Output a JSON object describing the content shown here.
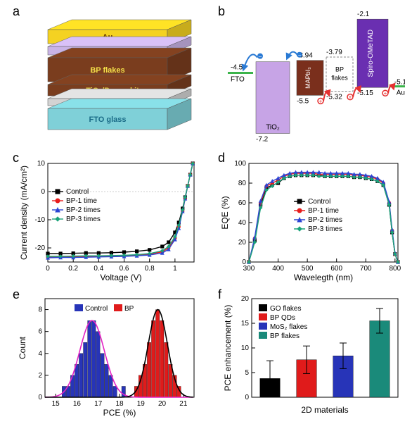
{
  "labels": {
    "a": "a",
    "b": "b",
    "c": "c",
    "d": "d",
    "e": "e",
    "f": "f"
  },
  "panel_a": {
    "layers": [
      {
        "name": "Au",
        "color": "#f4d222",
        "text_color": "#6a3c00"
      },
      {
        "name": "Spiro-OMeTAD",
        "color": "#c9b3e6",
        "text_color": "#ffffff"
      },
      {
        "name": "BP flakes",
        "color": "#7a3d1e",
        "text_color": "#f4e14a"
      },
      {
        "name": "mp-TiO₂/Perovskite",
        "color": "#7a3d1e",
        "text_color": "#f4e14a"
      },
      {
        "name": "Compact TiO₂",
        "color": "#d3d3d3",
        "text_color": "#888888"
      },
      {
        "name": "FTO glass",
        "color": "#7fd0d8",
        "text_color": "#1a6b87"
      }
    ]
  },
  "panel_b": {
    "bands": {
      "FTO": {
        "level": -4.5,
        "color": "#3cb44b"
      },
      "TiO2": {
        "cb": -4.0,
        "vb": -7.2,
        "color": "#c7a4e6",
        "label": "TiO₂"
      },
      "MAPbI3": {
        "cb": -3.94,
        "vb": -5.5,
        "color": "#7a2f1c",
        "label": "MAPbI₃",
        "label_color": "#ffffff"
      },
      "BP": {
        "cb": -3.79,
        "vb": -5.32,
        "color": "#ffffff",
        "border": "#888",
        "label": "BP flakes"
      },
      "Spiro": {
        "cb": -2.1,
        "vb": -5.15,
        "color": "#6a2fb1",
        "label": "Spiro-OMeTAD",
        "label_color": "#ffffff"
      },
      "Au": {
        "level": -5.1,
        "color": "#3cb44b"
      }
    },
    "electron_color": "#2a7ad4",
    "hole_color": "#e53030"
  },
  "panel_c": {
    "type": "line",
    "title": null,
    "xlabel": "Voltage (V)",
    "ylabel": "Current density (mA/cm²)",
    "xlim": [
      0.0,
      1.15
    ],
    "ylim": [
      -25,
      10
    ],
    "xticks": [
      0.0,
      0.2,
      0.4,
      0.6,
      0.8,
      1.0
    ],
    "yticks": [
      -20,
      -10,
      0,
      10
    ],
    "series": [
      {
        "name": "Control",
        "color": "#000000",
        "marker": "square",
        "x": [
          0.0,
          0.1,
          0.2,
          0.3,
          0.4,
          0.5,
          0.6,
          0.7,
          0.8,
          0.9,
          0.95,
          1.0,
          1.03,
          1.06,
          1.08,
          1.1,
          1.12,
          1.14
        ],
        "y": [
          -22.0,
          -22.0,
          -21.9,
          -21.8,
          -21.8,
          -21.7,
          -21.5,
          -21.2,
          -20.7,
          -19.5,
          -18.0,
          -14.5,
          -11.0,
          -6.0,
          -2.0,
          2.0,
          6.0,
          10.0
        ]
      },
      {
        "name": "BP-1 time",
        "color": "#e81c1c",
        "marker": "circle",
        "x": [
          0.0,
          0.1,
          0.2,
          0.3,
          0.4,
          0.5,
          0.6,
          0.7,
          0.8,
          0.9,
          0.95,
          1.0,
          1.03,
          1.06,
          1.08,
          1.1,
          1.12,
          1.14
        ],
        "y": [
          -23.2,
          -23.2,
          -23.1,
          -23.0,
          -23.0,
          -22.9,
          -22.8,
          -22.6,
          -22.2,
          -21.4,
          -20.0,
          -16.5,
          -12.5,
          -7.0,
          -2.5,
          2.0,
          6.0,
          10.0
        ]
      },
      {
        "name": "BP-2 times",
        "color": "#2a44d4",
        "marker": "triangle",
        "x": [
          0.0,
          0.1,
          0.2,
          0.3,
          0.4,
          0.5,
          0.6,
          0.7,
          0.8,
          0.9,
          0.95,
          1.0,
          1.03,
          1.06,
          1.08,
          1.1,
          1.12,
          1.14
        ],
        "y": [
          -23.5,
          -23.4,
          -23.4,
          -23.3,
          -23.2,
          -23.1,
          -23.0,
          -22.8,
          -22.5,
          -21.8,
          -20.5,
          -17.0,
          -13.0,
          -7.0,
          -2.5,
          2.0,
          6.0,
          10.0
        ]
      },
      {
        "name": "BP-3 times",
        "color": "#1aa37a",
        "marker": "diamond",
        "x": [
          0.0,
          0.1,
          0.2,
          0.3,
          0.4,
          0.5,
          0.6,
          0.7,
          0.8,
          0.9,
          0.95,
          1.0,
          1.03,
          1.06,
          1.08,
          1.1,
          1.12,
          1.14
        ],
        "y": [
          -23.0,
          -23.0,
          -22.9,
          -22.8,
          -22.8,
          -22.7,
          -22.6,
          -22.4,
          -22.0,
          -21.0,
          -19.5,
          -16.0,
          -12.0,
          -6.5,
          -2.0,
          2.0,
          6.0,
          10.0
        ]
      }
    ],
    "legend_pos": "middle-left",
    "background_color": "#ffffff"
  },
  "panel_d": {
    "type": "line",
    "xlabel": "Wavelegth (nm)",
    "ylabel": "EQE (%)",
    "xlim": [
      300,
      810
    ],
    "ylim": [
      0,
      100
    ],
    "xticks": [
      300,
      400,
      500,
      600,
      700,
      800
    ],
    "yticks": [
      0,
      20,
      40,
      60,
      80,
      100
    ],
    "series": [
      {
        "name": "Control",
        "color": "#000000",
        "marker": "square",
        "x": [
          300,
          320,
          340,
          360,
          380,
          400,
          420,
          440,
          460,
          480,
          500,
          520,
          540,
          560,
          580,
          600,
          620,
          640,
          660,
          680,
          700,
          720,
          740,
          760,
          780,
          790,
          800,
          810
        ],
        "y": [
          0,
          22,
          58,
          75,
          78,
          80,
          85,
          87,
          88,
          88,
          88,
          88,
          88,
          87,
          87,
          87,
          87,
          87,
          86,
          86,
          85,
          84,
          82,
          78,
          58,
          30,
          8,
          0
        ]
      },
      {
        "name": "BP-1 time",
        "color": "#e81c1c",
        "marker": "circle",
        "x": [
          300,
          320,
          340,
          360,
          380,
          400,
          420,
          440,
          460,
          480,
          500,
          520,
          540,
          560,
          580,
          600,
          620,
          640,
          660,
          680,
          700,
          720,
          740,
          760,
          780,
          790,
          800,
          810
        ],
        "y": [
          0,
          24,
          60,
          77,
          80,
          83,
          87,
          89,
          90,
          90,
          90,
          90,
          89,
          89,
          89,
          89,
          89,
          89,
          88,
          88,
          87,
          86,
          84,
          80,
          60,
          32,
          8,
          0
        ]
      },
      {
        "name": "BP-2 times",
        "color": "#2a44d4",
        "marker": "triangle",
        "x": [
          300,
          320,
          340,
          360,
          380,
          400,
          420,
          440,
          460,
          480,
          500,
          520,
          540,
          560,
          580,
          600,
          620,
          640,
          660,
          680,
          700,
          720,
          740,
          760,
          780,
          790,
          800,
          810
        ],
        "y": [
          0,
          25,
          62,
          78,
          82,
          85,
          88,
          90,
          91,
          91,
          91,
          91,
          91,
          90,
          90,
          90,
          90,
          90,
          89,
          89,
          88,
          87,
          85,
          81,
          61,
          33,
          9,
          0
        ]
      },
      {
        "name": "BP-3 times",
        "color": "#1aa37a",
        "marker": "diamond",
        "x": [
          300,
          320,
          340,
          360,
          380,
          400,
          420,
          440,
          460,
          480,
          500,
          520,
          540,
          560,
          580,
          600,
          620,
          640,
          660,
          680,
          700,
          720,
          740,
          760,
          780,
          790,
          800,
          810
        ],
        "y": [
          0,
          20,
          55,
          73,
          77,
          81,
          85,
          87,
          88,
          88,
          88,
          88,
          87,
          87,
          87,
          87,
          87,
          87,
          86,
          86,
          85,
          84,
          82,
          78,
          58,
          30,
          8,
          0
        ]
      }
    ],
    "legend_pos": "middle-center",
    "background_color": "#ffffff"
  },
  "panel_e": {
    "type": "histogram",
    "xlabel": "PCE (%)",
    "ylabel": "Count",
    "xlim": [
      14.5,
      21.5
    ],
    "ylim": [
      0,
      9
    ],
    "xticks": [
      15,
      16,
      17,
      18,
      19,
      20,
      21
    ],
    "yticks": [
      0,
      2,
      4,
      6,
      8
    ],
    "series": [
      {
        "name": "Control",
        "color": "#2734b8",
        "bins_x": [
          15.4,
          15.6,
          15.8,
          16.0,
          16.2,
          16.4,
          16.6,
          16.8,
          17.0,
          17.2,
          17.4,
          17.6,
          17.8,
          18.2
        ],
        "counts": [
          1,
          1,
          2,
          3,
          4,
          5,
          7,
          7,
          6,
          4,
          3,
          2,
          1,
          1
        ]
      },
      {
        "name": "BP",
        "color": "#e01b1b",
        "bins_x": [
          18.8,
          19.0,
          19.2,
          19.4,
          19.6,
          19.8,
          20.0,
          20.2,
          20.4,
          20.6,
          20.8
        ],
        "counts": [
          1,
          2,
          3,
          5,
          7,
          8,
          7,
          5,
          3,
          2,
          1
        ]
      }
    ],
    "bin_width": 0.2,
    "fit_curves": [
      {
        "color": "#e321c4",
        "series": 0
      },
      {
        "color": "#000000",
        "series": 1
      }
    ],
    "background_color": "#ffffff"
  },
  "panel_f": {
    "type": "bar",
    "xlabel": "2D materials",
    "ylabel": "PCE enhancement (%)",
    "xlim": [
      0,
      5
    ],
    "ylim": [
      0,
      20
    ],
    "yticks": [
      0,
      5,
      10,
      15,
      20
    ],
    "categories": [
      "GO flakes",
      "BP QDs",
      "MoS₂ flakes",
      "BP flakes"
    ],
    "values": [
      3.8,
      7.6,
      8.4,
      15.5
    ],
    "errors": [
      3.6,
      2.8,
      2.6,
      2.5
    ],
    "bar_colors": [
      "#000000",
      "#e01b1b",
      "#2734b8",
      "#1a8a7a"
    ],
    "bar_width": 0.55,
    "background_color": "#ffffff"
  }
}
